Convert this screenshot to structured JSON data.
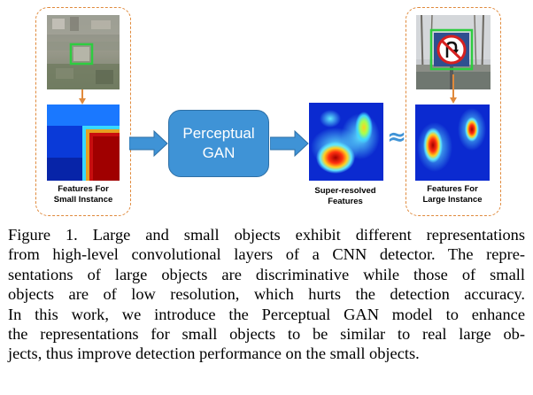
{
  "figure": {
    "left_label_line1": "Features For",
    "left_label_line2": "Small Instance",
    "gan_line1": "Perceptual",
    "gan_line2": "GAN",
    "mid_label_line1": "Super-resolved",
    "mid_label_line2": "Features",
    "approx_symbol": "≈",
    "right_label_line1": "Features For",
    "right_label_line2": "Large Instance",
    "colors": {
      "dashed_border": "#e08a3c",
      "arrow": "#3f93d6",
      "gan_fill": "#3f93d6",
      "detection_box": "#2ecc40",
      "orange_arrow": "#e08a3c"
    }
  },
  "caption": {
    "lines": [
      "Figure 1. Large and small objects exhibit different representations",
      "from high-level convolutional layers of a CNN detector. The repre-",
      "sentations of large objects are discriminative while those of small",
      "objects are of low resolution, which hurts the detection accuracy.",
      "In this work, we introduce the Perceptual GAN model to enhance",
      "the representations for small objects to be similar to real large ob-",
      "jects, thus improve detection performance on the small objects."
    ]
  }
}
